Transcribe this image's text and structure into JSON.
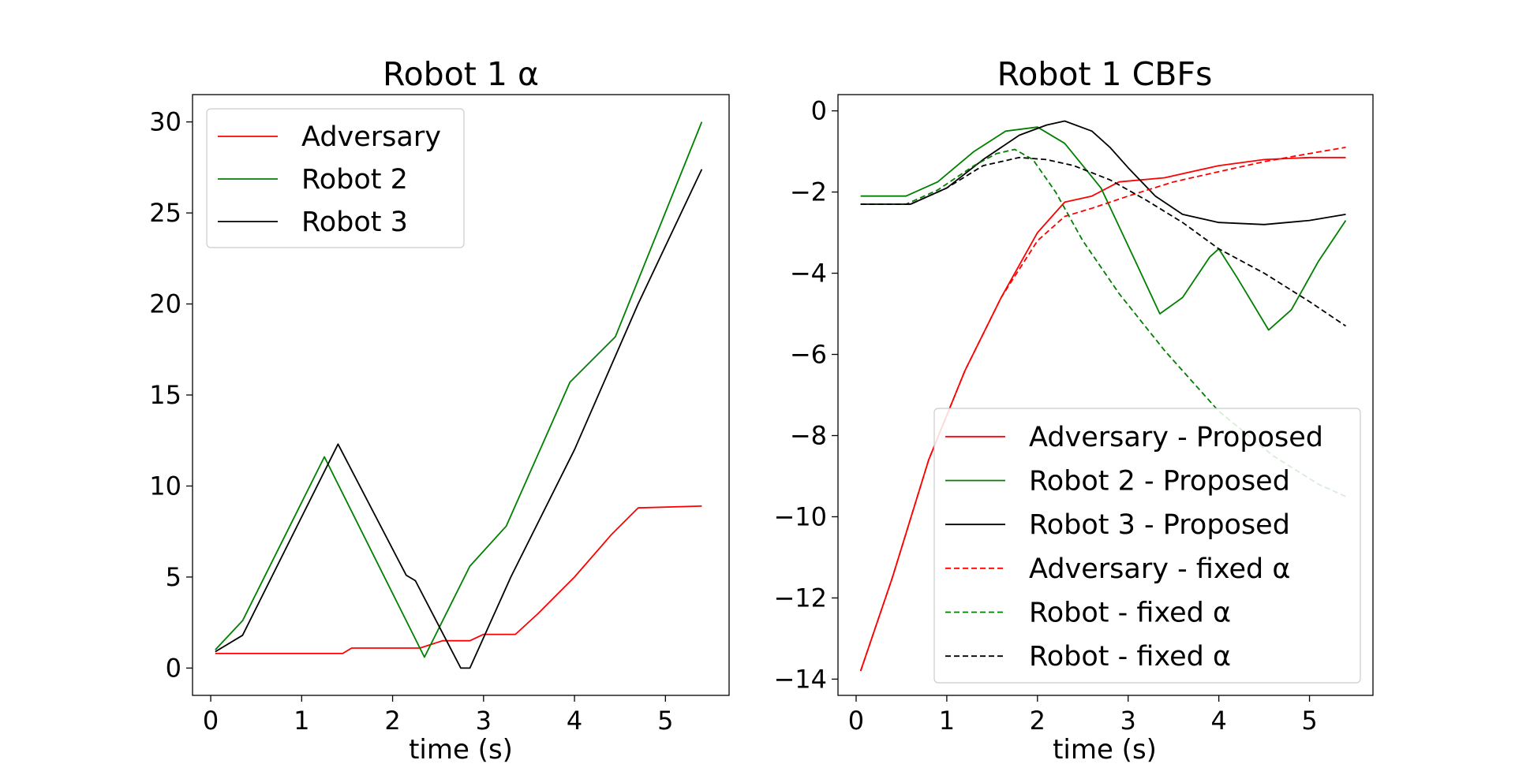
{
  "chart_data": [
    {
      "type": "line",
      "title": "Robot 1 α",
      "xlabel": "time (s)",
      "ylabel": "",
      "xlim": [
        -0.2,
        5.7
      ],
      "ylim": [
        -1.5,
        31.5
      ],
      "xticks": [
        0,
        1,
        2,
        3,
        4,
        5
      ],
      "xtick_labels": [
        "0",
        "1",
        "2",
        "3",
        "4",
        "5"
      ],
      "yticks": [
        0,
        5,
        10,
        15,
        20,
        25,
        30
      ],
      "ytick_labels": [
        "0",
        "5",
        "10",
        "15",
        "20",
        "25",
        "30"
      ],
      "grid": false,
      "legend_position": "top-left",
      "series": [
        {
          "name": "Adversary",
          "color": "#ff0000",
          "dash": "solid",
          "x": [
            0.05,
            1.45,
            1.55,
            2.3,
            2.55,
            2.85,
            3.0,
            3.35,
            3.6,
            4.0,
            4.4,
            4.7,
            5.4
          ],
          "y": [
            0.8,
            0.8,
            1.1,
            1.1,
            1.5,
            1.5,
            1.85,
            1.85,
            3.0,
            5.0,
            7.3,
            8.8,
            8.9
          ]
        },
        {
          "name": "Robot 2",
          "color": "#008000",
          "dash": "solid",
          "x": [
            0.05,
            0.35,
            1.25,
            2.35,
            2.85,
            3.25,
            3.95,
            4.45,
            5.4
          ],
          "y": [
            1.0,
            2.6,
            11.6,
            0.6,
            5.6,
            7.8,
            15.7,
            18.2,
            30.0
          ]
        },
        {
          "name": "Robot 3",
          "color": "#000000",
          "dash": "solid",
          "x": [
            0.05,
            0.35,
            1.4,
            2.15,
            2.25,
            2.75,
            2.85,
            3.3,
            4.0,
            4.7,
            5.4
          ],
          "y": [
            0.9,
            1.8,
            12.3,
            5.1,
            4.8,
            0.0,
            0.0,
            5.0,
            12.0,
            20.0,
            27.4
          ]
        }
      ]
    },
    {
      "type": "line",
      "title": "Robot 1 CBFs",
      "xlabel": "time (s)",
      "ylabel": "",
      "xlim": [
        -0.2,
        5.7
      ],
      "ylim": [
        -14.4,
        0.4
      ],
      "xticks": [
        0,
        1,
        2,
        3,
        4,
        5
      ],
      "xtick_labels": [
        "0",
        "1",
        "2",
        "3",
        "4",
        "5"
      ],
      "yticks": [
        0,
        -2,
        -4,
        -6,
        -8,
        -10,
        -12,
        -14
      ],
      "ytick_labels": [
        "0",
        "−2",
        "−4",
        "−6",
        "−8",
        "−10",
        "−12",
        "−14"
      ],
      "grid": false,
      "legend_position": "bottom-right",
      "series": [
        {
          "name": "Adversary - Proposed",
          "color": "#ff0000",
          "dash": "solid",
          "x": [
            0.05,
            0.4,
            0.8,
            1.2,
            1.6,
            2.0,
            2.3,
            2.6,
            2.9,
            3.4,
            4.0,
            4.5,
            5.0,
            5.4
          ],
          "y": [
            -13.8,
            -11.5,
            -8.6,
            -6.4,
            -4.6,
            -3.0,
            -2.25,
            -2.1,
            -1.75,
            -1.65,
            -1.35,
            -1.2,
            -1.15,
            -1.15
          ]
        },
        {
          "name": "Robot 2 - Proposed",
          "color": "#008000",
          "dash": "solid",
          "x": [
            0.05,
            0.55,
            0.9,
            1.3,
            1.65,
            2.0,
            2.3,
            2.7,
            3.1,
            3.35,
            3.6,
            3.9,
            4.0,
            4.2,
            4.55,
            4.8,
            5.1,
            5.4
          ],
          "y": [
            -2.1,
            -2.1,
            -1.75,
            -1.0,
            -0.5,
            -0.4,
            -0.8,
            -1.9,
            -3.8,
            -5.0,
            -4.6,
            -3.6,
            -3.4,
            -4.1,
            -5.4,
            -4.9,
            -3.7,
            -2.7
          ]
        },
        {
          "name": "Robot 3 - Proposed",
          "color": "#000000",
          "dash": "solid",
          "x": [
            0.05,
            0.6,
            1.0,
            1.4,
            1.8,
            2.1,
            2.3,
            2.6,
            2.8,
            3.0,
            3.3,
            3.6,
            4.0,
            4.5,
            5.0,
            5.4
          ],
          "y": [
            -2.3,
            -2.3,
            -1.9,
            -1.2,
            -0.6,
            -0.35,
            -0.25,
            -0.5,
            -0.9,
            -1.4,
            -2.1,
            -2.55,
            -2.75,
            -2.8,
            -2.7,
            -2.55
          ]
        },
        {
          "name": "Adversary - fixed α",
          "color": "#ff0000",
          "dash": "dashed",
          "x": [
            0.05,
            0.4,
            0.8,
            1.2,
            1.6,
            2.0,
            2.3,
            2.6,
            3.0,
            3.5,
            4.0,
            4.5,
            5.0,
            5.4
          ],
          "y": [
            -13.8,
            -11.5,
            -8.6,
            -6.4,
            -4.6,
            -3.2,
            -2.6,
            -2.4,
            -2.1,
            -1.75,
            -1.5,
            -1.25,
            -1.05,
            -0.9
          ]
        },
        {
          "name": "Robot - fixed α",
          "color": "#008000",
          "dash": "dashed",
          "x": [
            0.05,
            0.55,
            0.9,
            1.3,
            1.55,
            1.75,
            1.95,
            2.2,
            2.5,
            2.9,
            3.4,
            4.0,
            4.6,
            5.1,
            5.4
          ],
          "y": [
            -2.3,
            -2.3,
            -1.95,
            -1.35,
            -1.05,
            -0.95,
            -1.2,
            -2.0,
            -3.2,
            -4.5,
            -5.9,
            -7.4,
            -8.5,
            -9.2,
            -9.5
          ]
        },
        {
          "name": "Robot - fixed α",
          "color": "#000000",
          "dash": "dashed",
          "x": [
            0.05,
            0.6,
            1.0,
            1.4,
            1.8,
            2.1,
            2.4,
            2.8,
            3.2,
            3.6,
            4.0,
            4.5,
            5.0,
            5.4
          ],
          "y": [
            -2.3,
            -2.3,
            -1.9,
            -1.35,
            -1.15,
            -1.2,
            -1.35,
            -1.7,
            -2.2,
            -2.75,
            -3.4,
            -4.0,
            -4.7,
            -5.3
          ]
        }
      ]
    }
  ]
}
